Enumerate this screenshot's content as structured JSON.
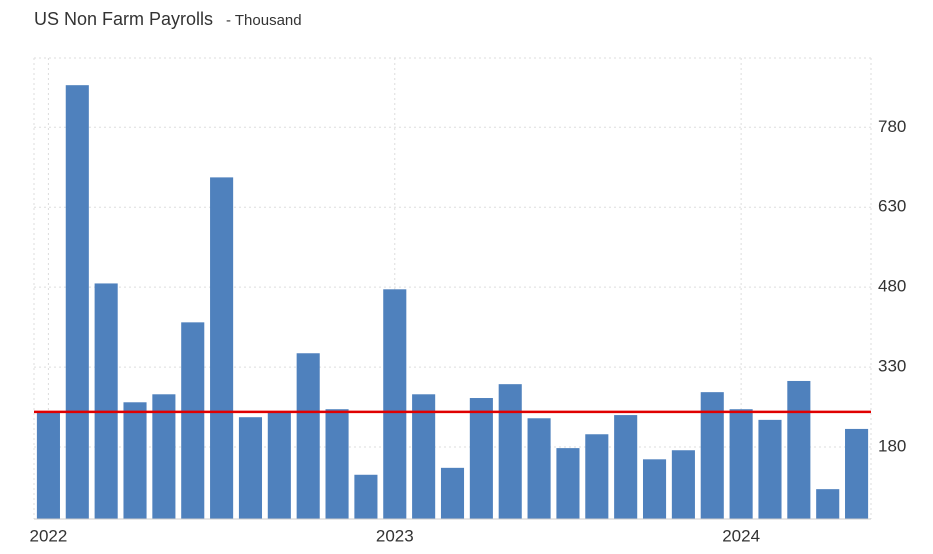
{
  "chart_data": {
    "type": "bar",
    "title": "US Non Farm Payrolls",
    "subtitle": "- Thousand",
    "categories": [
      "2022",
      null,
      null,
      null,
      null,
      null,
      null,
      null,
      null,
      null,
      null,
      null,
      "2023",
      null,
      null,
      null,
      null,
      null,
      null,
      null,
      null,
      null,
      null,
      null,
      "2024",
      null,
      null,
      null,
      null
    ],
    "values": [
      244,
      859,
      487,
      264,
      279,
      414,
      686,
      236,
      247,
      356,
      251,
      128,
      476,
      279,
      141,
      272,
      298,
      234,
      178,
      204,
      240,
      157,
      174,
      283,
      251,
      231,
      304,
      101,
      214
    ],
    "color": "#4f81bd",
    "reference_line": 246,
    "reference_color": "#e00000",
    "ylim": [
      45,
      910
    ],
    "yticks": [
      180,
      330,
      480,
      630,
      780
    ],
    "grid": true
  }
}
